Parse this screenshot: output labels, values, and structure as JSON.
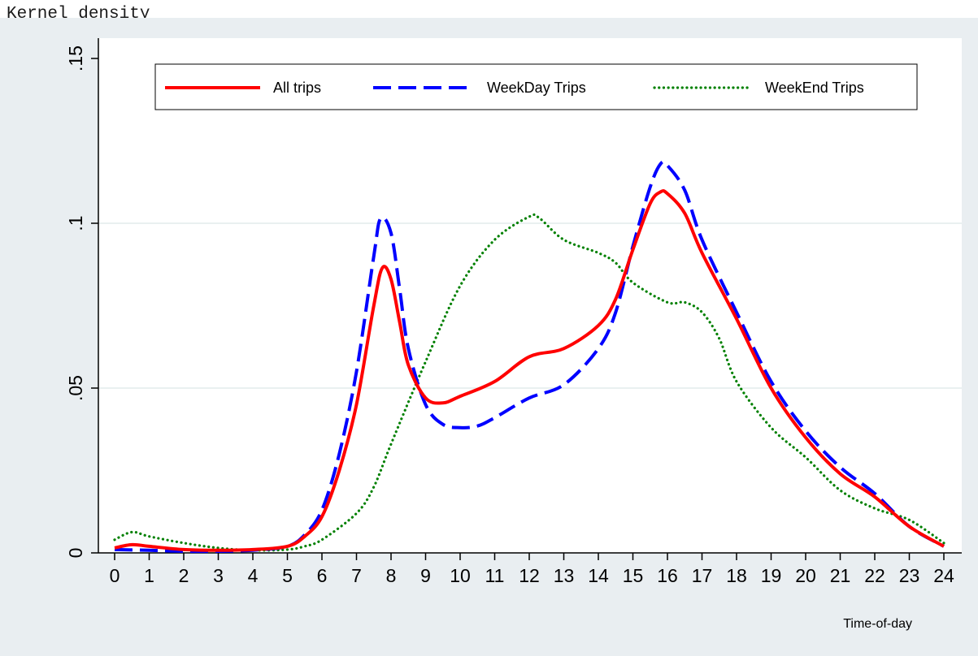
{
  "chart_data": {
    "type": "line",
    "title": "Kernel density",
    "xlabel": "Time-of-day",
    "ylabel": "",
    "xlim": [
      0,
      24
    ],
    "ylim": [
      0,
      0.15
    ],
    "x_ticks": [
      0,
      1,
      2,
      3,
      4,
      5,
      6,
      7,
      8,
      9,
      10,
      11,
      12,
      13,
      14,
      15,
      16,
      17,
      18,
      19,
      20,
      21,
      22,
      23,
      24
    ],
    "x_tick_labels": [
      "0",
      "1",
      "2",
      "3",
      "4",
      "5",
      "6",
      "7",
      "8",
      "9",
      "10",
      "11",
      "12",
      "13",
      "14",
      "15",
      "16",
      "17",
      "18",
      "19",
      "20",
      "21",
      "22",
      "23",
      "24"
    ],
    "y_ticks": [
      0,
      0.05,
      0.1,
      0.15
    ],
    "y_tick_labels": [
      "0",
      ".05",
      ".1",
      ".15"
    ],
    "grid": "horizontal",
    "legend_position": "top",
    "series": [
      {
        "name": "All trips",
        "color": "#ff0000",
        "style": "solid",
        "points": [
          [
            0,
            0.0015
          ],
          [
            0.5,
            0.0025
          ],
          [
            1,
            0.002
          ],
          [
            2,
            0.001
          ],
          [
            3,
            0.0008
          ],
          [
            4,
            0.001
          ],
          [
            5,
            0.002
          ],
          [
            5.5,
            0.005
          ],
          [
            6,
            0.011
          ],
          [
            6.5,
            0.025
          ],
          [
            7,
            0.045
          ],
          [
            7.5,
            0.075
          ],
          [
            7.75,
            0.0865
          ],
          [
            8,
            0.083
          ],
          [
            8.25,
            0.07
          ],
          [
            8.5,
            0.057
          ],
          [
            9,
            0.047
          ],
          [
            9.5,
            0.0455
          ],
          [
            10,
            0.0475
          ],
          [
            11,
            0.052
          ],
          [
            12,
            0.0595
          ],
          [
            13,
            0.062
          ],
          [
            14,
            0.069
          ],
          [
            14.5,
            0.077
          ],
          [
            15,
            0.092
          ],
          [
            15.5,
            0.106
          ],
          [
            15.8,
            0.1095
          ],
          [
            16,
            0.109
          ],
          [
            16.5,
            0.103
          ],
          [
            17,
            0.091
          ],
          [
            18,
            0.071
          ],
          [
            19,
            0.05
          ],
          [
            20,
            0.035
          ],
          [
            21,
            0.024
          ],
          [
            22,
            0.017
          ],
          [
            23,
            0.008
          ],
          [
            24,
            0.002
          ]
        ]
      },
      {
        "name": "WeekDay Trips",
        "color": "#0000ff",
        "style": "dashed",
        "points": [
          [
            0,
            0.001
          ],
          [
            1,
            0.0008
          ],
          [
            2,
            0.0005
          ],
          [
            3,
            0.0005
          ],
          [
            4,
            0.0008
          ],
          [
            5,
            0.002
          ],
          [
            5.5,
            0.0055
          ],
          [
            6,
            0.013
          ],
          [
            6.5,
            0.03
          ],
          [
            7,
            0.055
          ],
          [
            7.5,
            0.09
          ],
          [
            7.7,
            0.1015
          ],
          [
            8,
            0.097
          ],
          [
            8.25,
            0.08
          ],
          [
            8.5,
            0.062
          ],
          [
            9,
            0.045
          ],
          [
            9.5,
            0.039
          ],
          [
            10,
            0.038
          ],
          [
            10.5,
            0.0385
          ],
          [
            11,
            0.041
          ],
          [
            12,
            0.047
          ],
          [
            13,
            0.051
          ],
          [
            14,
            0.062
          ],
          [
            14.5,
            0.073
          ],
          [
            15,
            0.093
          ],
          [
            15.5,
            0.111
          ],
          [
            15.8,
            0.118
          ],
          [
            16,
            0.1175
          ],
          [
            16.5,
            0.11
          ],
          [
            17,
            0.095
          ],
          [
            18,
            0.073
          ],
          [
            19,
            0.052
          ],
          [
            20,
            0.037
          ],
          [
            21,
            0.026
          ],
          [
            22,
            0.018
          ],
          [
            23,
            0.008
          ],
          [
            24,
            0.002
          ]
        ]
      },
      {
        "name": "WeekEnd Trips",
        "color": "#008000",
        "style": "dotted",
        "points": [
          [
            0,
            0.004
          ],
          [
            0.5,
            0.0063
          ],
          [
            1,
            0.005
          ],
          [
            2,
            0.003
          ],
          [
            3,
            0.0015
          ],
          [
            4,
            0.0008
          ],
          [
            5,
            0.001
          ],
          [
            5.5,
            0.002
          ],
          [
            6,
            0.004
          ],
          [
            7,
            0.012
          ],
          [
            7.5,
            0.02
          ],
          [
            8,
            0.033
          ],
          [
            9,
            0.058
          ],
          [
            10,
            0.081
          ],
          [
            11,
            0.095
          ],
          [
            12,
            0.102
          ],
          [
            12.3,
            0.1015
          ],
          [
            13,
            0.095
          ],
          [
            14,
            0.091
          ],
          [
            14.5,
            0.088
          ],
          [
            15,
            0.082
          ],
          [
            16,
            0.076
          ],
          [
            16.5,
            0.076
          ],
          [
            17,
            0.073
          ],
          [
            17.5,
            0.065
          ],
          [
            18,
            0.052
          ],
          [
            19,
            0.038
          ],
          [
            20,
            0.029
          ],
          [
            21,
            0.019
          ],
          [
            22,
            0.0135
          ],
          [
            23,
            0.01
          ],
          [
            24,
            0.003
          ]
        ]
      }
    ]
  }
}
